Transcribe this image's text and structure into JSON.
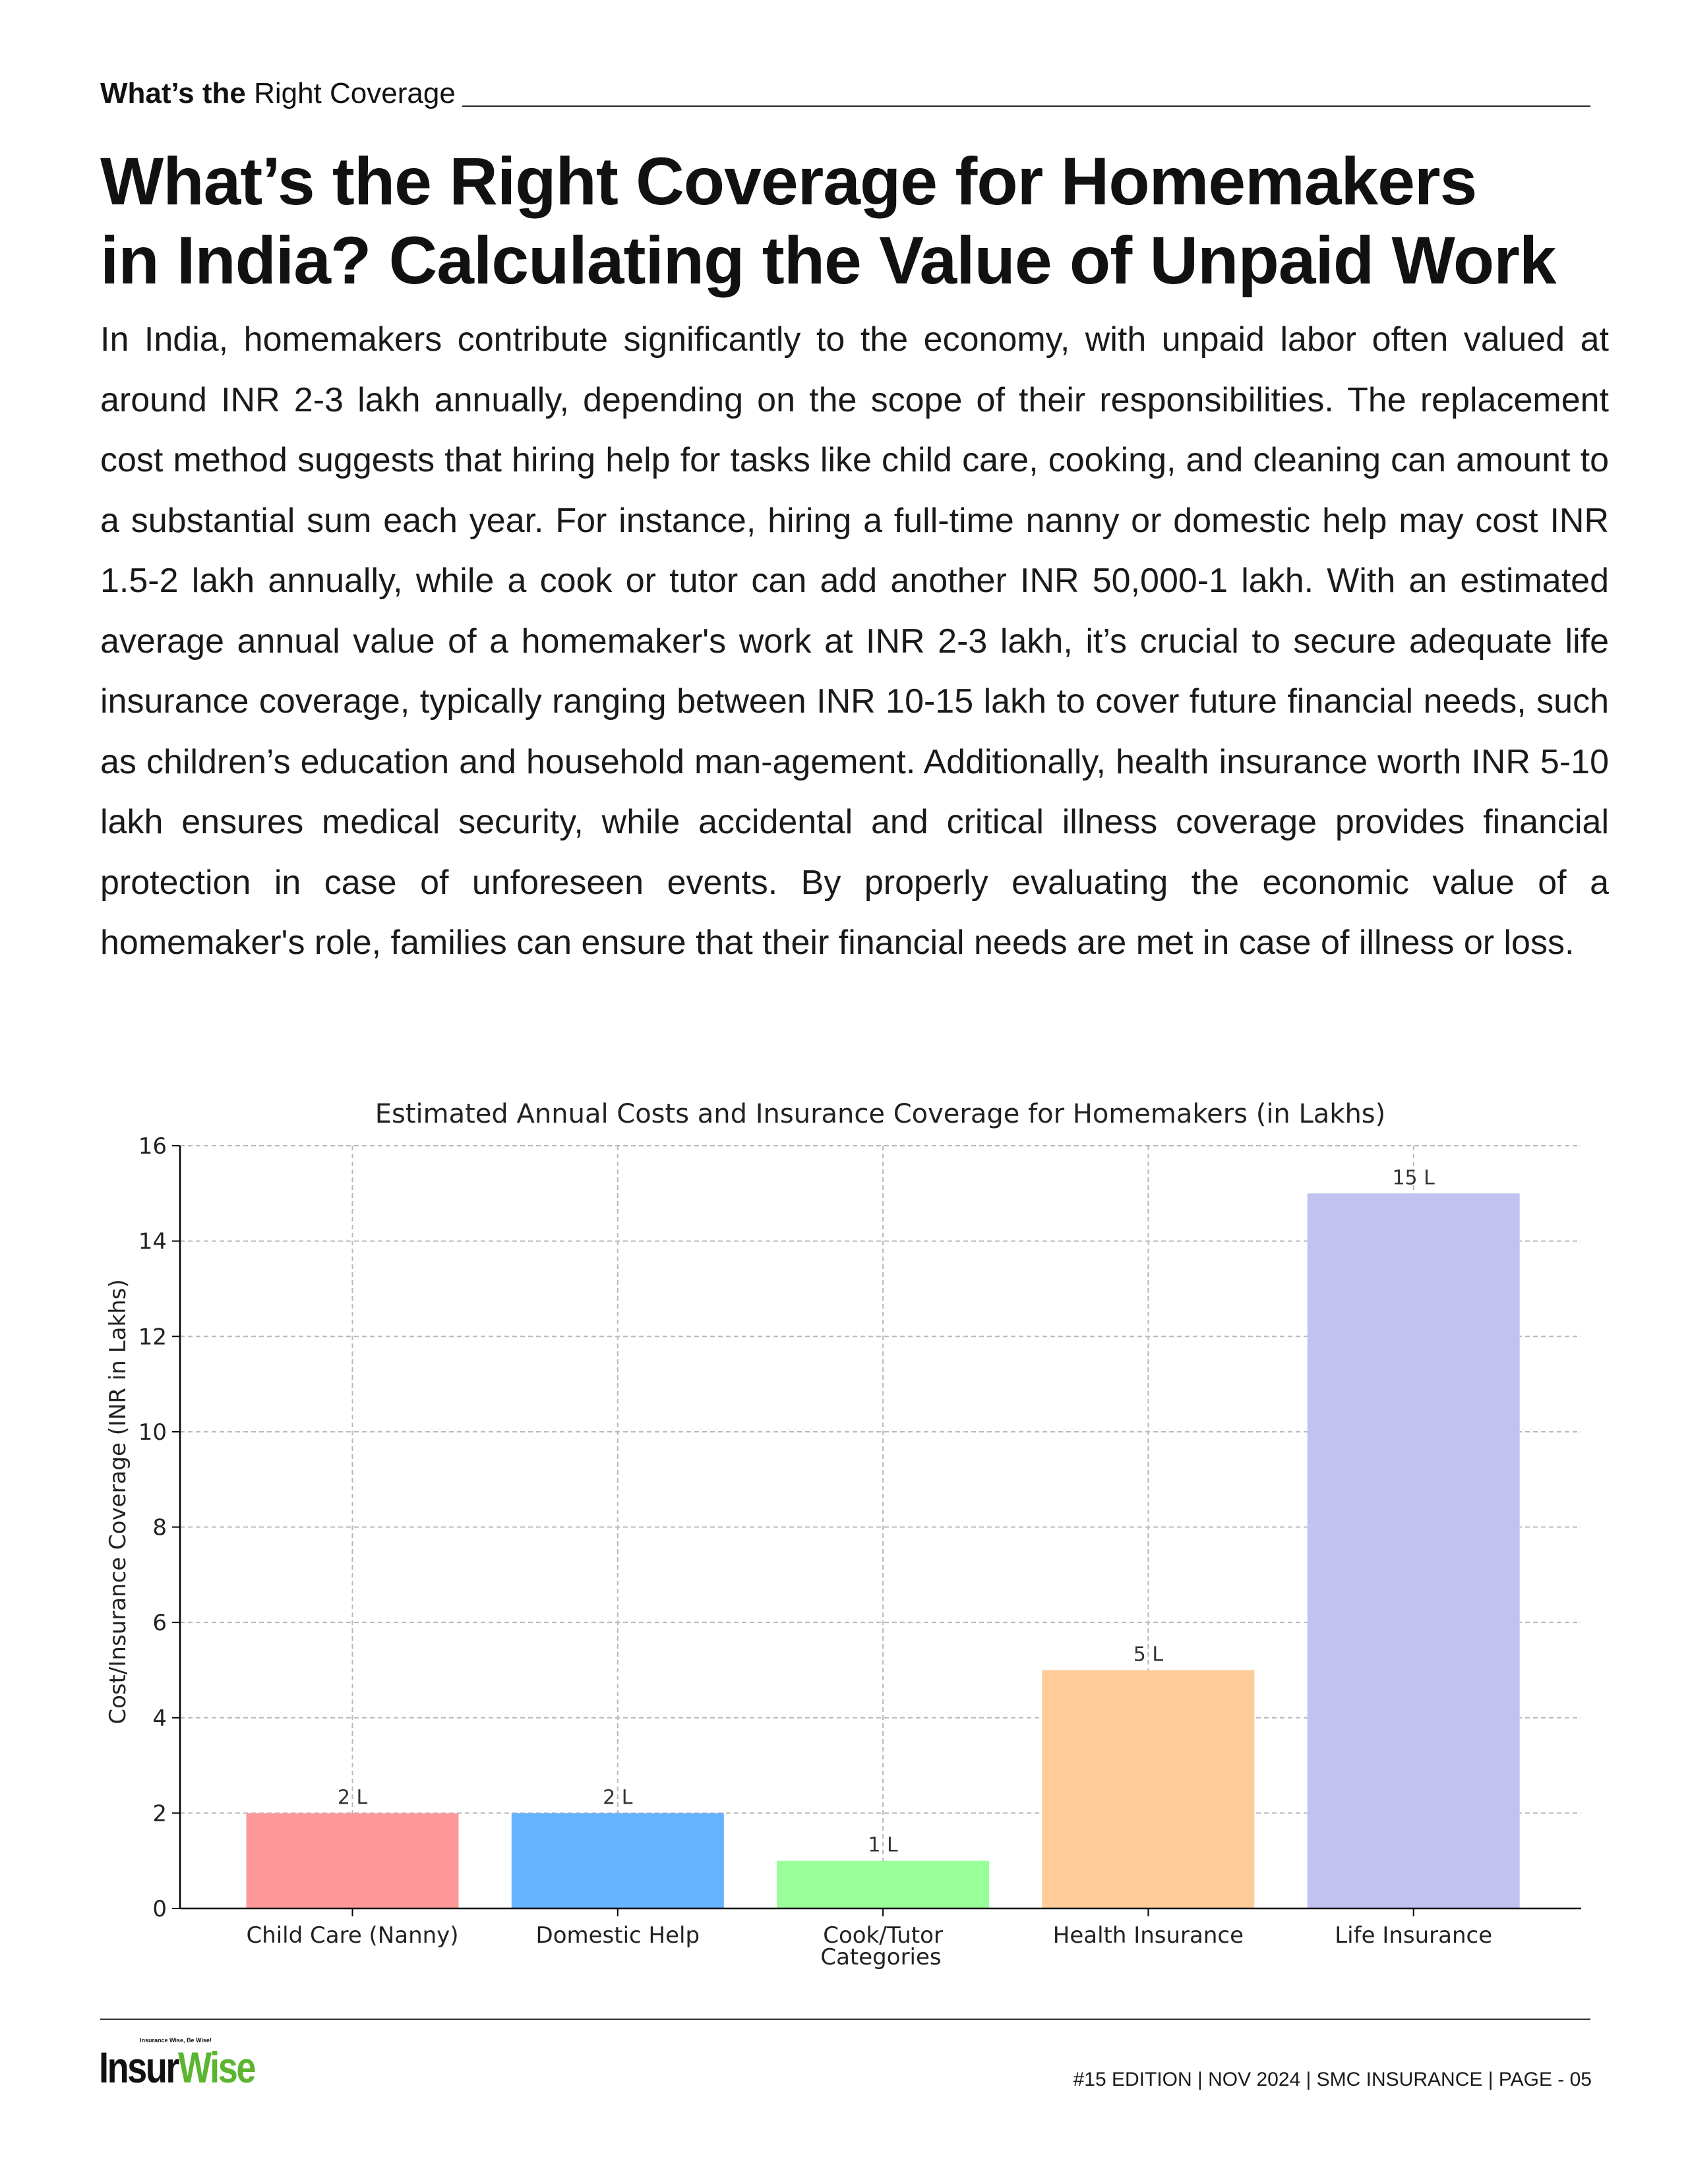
{
  "header": {
    "section_bold": "What’s the",
    "section_rest": "Right Coverage"
  },
  "article": {
    "title_line1": "What’s the Right Coverage for Homemakers",
    "title_line2": "in India? Calculating the Value of Unpaid Work",
    "body": "In India, homemakers contribute significantly to the economy, with unpaid labor often valued at around INR 2-3 lakh annually, depending on the scope of their responsibilities. The replacement cost method suggests that hiring help for tasks like child care, cooking, and cleaning can amount to a substantial sum each year. For instance, hiring a full-time nanny or domestic help may cost INR 1.5-2 lakh annually, while a cook or tutor can add another INR 50,000-1 lakh. With an estimated average annual value of a homemaker's work at INR 2-3 lakh, it’s crucial to secure adequate life insurance coverage, typically ranging between INR 10-15 lakh to cover future financial needs, such as children’s education and household man-agement. Additionally, health insurance worth INR 5-10 lakh ensures medical security, while accidental and critical illness coverage provides financial protection in case of unforeseen events. By properly evaluating the economic value of a homemaker's role, families can ensure that their financial needs are met in case of illness or loss."
  },
  "chart_data": {
    "type": "bar",
    "title": "Estimated Annual Costs and Insurance Coverage for Homemakers (in Lakhs)",
    "xlabel": "Categories",
    "ylabel": "Cost/Insurance Coverage (INR in Lakhs)",
    "categories": [
      "Child Care (Nanny)",
      "Domestic Help",
      "Cook/Tutor",
      "Health Insurance",
      "Life Insurance"
    ],
    "values": [
      2,
      2,
      1,
      5,
      15
    ],
    "data_labels": [
      "2 L",
      "2 L",
      "1 L",
      "5 L",
      "15 L"
    ],
    "colors": [
      "#ff9999",
      "#66b3ff",
      "#99ff99",
      "#ffcc99",
      "#c2c2f0"
    ],
    "ylim": [
      0,
      16
    ],
    "yticks": [
      0,
      2,
      4,
      6,
      8,
      10,
      12,
      14,
      16
    ],
    "grid": true
  },
  "footer": {
    "logo_tagline": "Insurance Wise, Be Wise!",
    "logo_part1": "Insur",
    "logo_part2": "Wise",
    "meta": "#15 EDITION | NOV 2024 | SMC INSURANCE | PAGE - 05"
  }
}
